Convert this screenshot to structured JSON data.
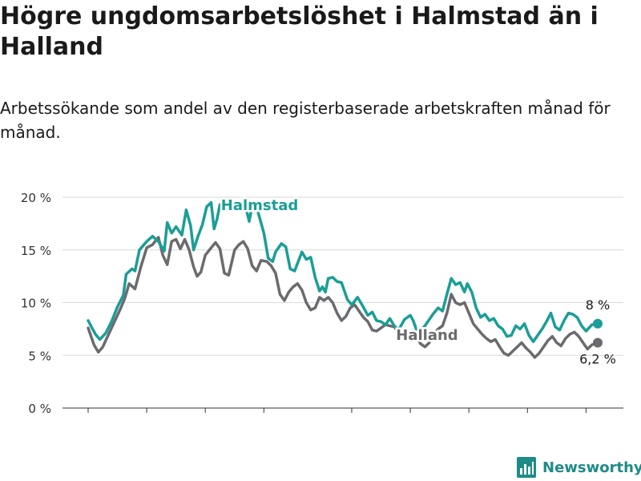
{
  "title": "Högre ungdomsarbetslöshet i Halmstad än i Halland",
  "subtitle": "Arbetssökande som andel av den registerbaserade arbetskraften månad för månad.",
  "brand": "Newsworthy",
  "colors": {
    "halmstad": "#1a9e96",
    "halland": "#6b6b6f",
    "grid": "#d9d9d9"
  },
  "chart_data": {
    "type": "line",
    "title": "Högre ungdomsarbetslöshet i Halmstad än i Halland",
    "xlabel": "",
    "ylabel": "",
    "ylim": [
      0,
      20
    ],
    "yticks": [
      0,
      5,
      10,
      15,
      20
    ],
    "ytick_labels": [
      "0 %",
      "5 %",
      "10 %",
      "15 %",
      "20 %"
    ],
    "xticks": [
      2008,
      2010,
      2012,
      2014,
      2017,
      2019,
      2021,
      2023,
      2025
    ],
    "grid": true,
    "series": [
      {
        "name": "Halmstad",
        "end_label": "8 %",
        "points": [
          [
            2008.0,
            8.3
          ],
          [
            2008.25,
            7.0
          ],
          [
            2008.4,
            6.5
          ],
          [
            2008.6,
            7.1
          ],
          [
            2008.8,
            8.2
          ],
          [
            2009.0,
            9.6
          ],
          [
            2009.2,
            10.7
          ],
          [
            2009.3,
            12.7
          ],
          [
            2009.5,
            13.2
          ],
          [
            2009.6,
            13.0
          ],
          [
            2009.75,
            15.0
          ],
          [
            2010.0,
            15.8
          ],
          [
            2010.2,
            16.3
          ],
          [
            2010.4,
            15.8
          ],
          [
            2010.6,
            14.9
          ],
          [
            2010.7,
            17.6
          ],
          [
            2010.85,
            16.6
          ],
          [
            2011.0,
            17.2
          ],
          [
            2011.2,
            16.4
          ],
          [
            2011.35,
            18.8
          ],
          [
            2011.5,
            17.3
          ],
          [
            2011.6,
            15.0
          ],
          [
            2011.75,
            16.3
          ],
          [
            2011.9,
            17.4
          ],
          [
            2012.05,
            19.1
          ],
          [
            2012.2,
            19.5
          ],
          [
            2012.3,
            17.0
          ],
          [
            2012.4,
            17.9
          ],
          [
            2012.5,
            19.3
          ],
          [
            2013.0,
            19.3
          ],
          [
            2013.35,
            19.4
          ],
          [
            2013.5,
            17.7
          ],
          [
            2013.62,
            19.5
          ],
          [
            2013.8,
            18.6
          ],
          [
            2014.0,
            16.6
          ],
          [
            2014.15,
            14.2
          ],
          [
            2014.3,
            13.9
          ],
          [
            2014.4,
            14.8
          ],
          [
            2014.6,
            15.6
          ],
          [
            2014.75,
            15.3
          ],
          [
            2014.9,
            13.2
          ],
          [
            2015.05,
            13.0
          ],
          [
            2015.3,
            14.8
          ],
          [
            2015.45,
            14.1
          ],
          [
            2015.6,
            14.3
          ],
          [
            2015.75,
            12.4
          ],
          [
            2015.9,
            11.1
          ],
          [
            2016.0,
            11.5
          ],
          [
            2016.1,
            11.0
          ],
          [
            2016.2,
            12.3
          ],
          [
            2016.35,
            12.4
          ],
          [
            2016.5,
            12.0
          ],
          [
            2016.65,
            11.9
          ],
          [
            2016.85,
            10.3
          ],
          [
            2017.0,
            9.8
          ],
          [
            2017.2,
            10.5
          ],
          [
            2017.35,
            9.8
          ],
          [
            2017.55,
            8.8
          ],
          [
            2017.7,
            9.1
          ],
          [
            2017.85,
            8.3
          ],
          [
            2018.0,
            8.2
          ],
          [
            2018.15,
            7.9
          ],
          [
            2018.3,
            8.5
          ],
          [
            2018.45,
            7.8
          ],
          [
            2018.6,
            7.4
          ],
          [
            2018.8,
            8.4
          ],
          [
            2019.0,
            8.8
          ],
          [
            2019.1,
            8.3
          ],
          [
            2019.2,
            7.5
          ],
          [
            2019.35,
            7.3
          ],
          [
            2019.5,
            7.8
          ],
          [
            2019.65,
            8.4
          ],
          [
            2019.8,
            9.0
          ],
          [
            2019.95,
            9.5
          ],
          [
            2020.1,
            9.2
          ],
          [
            2020.25,
            10.8
          ],
          [
            2020.4,
            12.3
          ],
          [
            2020.55,
            11.7
          ],
          [
            2020.7,
            11.9
          ],
          [
            2020.85,
            11.0
          ],
          [
            2020.95,
            11.8
          ],
          [
            2021.1,
            11.0
          ],
          [
            2021.25,
            9.5
          ],
          [
            2021.4,
            8.6
          ],
          [
            2021.55,
            8.9
          ],
          [
            2021.7,
            8.3
          ],
          [
            2021.85,
            8.5
          ],
          [
            2022.0,
            7.8
          ],
          [
            2022.15,
            7.5
          ],
          [
            2022.3,
            6.8
          ],
          [
            2022.45,
            6.9
          ],
          [
            2022.6,
            7.8
          ],
          [
            2022.75,
            7.5
          ],
          [
            2022.9,
            8.0
          ],
          [
            2023.05,
            6.9
          ],
          [
            2023.2,
            6.3
          ],
          [
            2023.35,
            6.9
          ],
          [
            2023.5,
            7.5
          ],
          [
            2023.65,
            8.2
          ],
          [
            2023.8,
            9.0
          ],
          [
            2023.95,
            7.7
          ],
          [
            2024.1,
            7.4
          ],
          [
            2024.25,
            8.3
          ],
          [
            2024.4,
            9.0
          ],
          [
            2024.55,
            8.9
          ],
          [
            2024.7,
            8.6
          ],
          [
            2024.85,
            7.8
          ],
          [
            2025.0,
            7.3
          ],
          [
            2025.2,
            7.9
          ],
          [
            2025.4,
            8.0
          ]
        ]
      },
      {
        "name": "Halland",
        "end_label": "6,2 %",
        "points": [
          [
            2008.0,
            7.6
          ],
          [
            2008.2,
            6.0
          ],
          [
            2008.35,
            5.3
          ],
          [
            2008.5,
            5.8
          ],
          [
            2008.7,
            7.0
          ],
          [
            2008.9,
            8.2
          ],
          [
            2009.1,
            9.4
          ],
          [
            2009.25,
            10.4
          ],
          [
            2009.4,
            11.8
          ],
          [
            2009.6,
            11.3
          ],
          [
            2009.8,
            13.4
          ],
          [
            2010.0,
            15.2
          ],
          [
            2010.2,
            15.5
          ],
          [
            2010.4,
            16.2
          ],
          [
            2010.55,
            14.5
          ],
          [
            2010.7,
            13.6
          ],
          [
            2010.85,
            15.8
          ],
          [
            2011.0,
            16.0
          ],
          [
            2011.15,
            15.1
          ],
          [
            2011.3,
            16.0
          ],
          [
            2011.45,
            15.0
          ],
          [
            2011.6,
            13.4
          ],
          [
            2011.72,
            12.5
          ],
          [
            2011.85,
            12.9
          ],
          [
            2012.0,
            14.5
          ],
          [
            2012.2,
            15.2
          ],
          [
            2012.35,
            15.7
          ],
          [
            2012.5,
            15.1
          ],
          [
            2012.65,
            12.8
          ],
          [
            2012.8,
            12.6
          ],
          [
            2013.0,
            15.0
          ],
          [
            2013.15,
            15.5
          ],
          [
            2013.3,
            15.8
          ],
          [
            2013.45,
            15.1
          ],
          [
            2013.6,
            13.5
          ],
          [
            2013.75,
            13.0
          ],
          [
            2013.9,
            14.0
          ],
          [
            2014.1,
            13.9
          ],
          [
            2014.25,
            13.5
          ],
          [
            2014.4,
            12.8
          ],
          [
            2014.55,
            10.8
          ],
          [
            2014.7,
            10.2
          ],
          [
            2014.85,
            11.0
          ],
          [
            2015.0,
            11.5
          ],
          [
            2015.15,
            11.8
          ],
          [
            2015.3,
            11.2
          ],
          [
            2015.45,
            10.0
          ],
          [
            2015.6,
            9.3
          ],
          [
            2015.75,
            9.5
          ],
          [
            2015.9,
            10.5
          ],
          [
            2016.05,
            10.2
          ],
          [
            2016.2,
            10.5
          ],
          [
            2016.35,
            10.0
          ],
          [
            2016.5,
            9.0
          ],
          [
            2016.65,
            8.3
          ],
          [
            2016.8,
            8.7
          ],
          [
            2016.95,
            9.5
          ],
          [
            2017.1,
            9.8
          ],
          [
            2017.25,
            9.2
          ],
          [
            2017.4,
            8.6
          ],
          [
            2017.55,
            8.2
          ],
          [
            2017.7,
            7.4
          ],
          [
            2017.85,
            7.3
          ],
          [
            2018.0,
            7.6
          ],
          [
            2018.15,
            7.9
          ],
          [
            2018.3,
            7.8
          ],
          [
            2018.45,
            7.7
          ],
          [
            2018.6,
            7.2
          ],
          [
            2018.75,
            6.8
          ],
          [
            2018.9,
            6.6
          ],
          [
            2019.05,
            6.4
          ],
          [
            2019.2,
            6.8
          ],
          [
            2019.35,
            6.1
          ],
          [
            2019.5,
            5.8
          ],
          [
            2019.65,
            6.2
          ],
          [
            2019.8,
            7.0
          ],
          [
            2019.95,
            7.5
          ],
          [
            2020.1,
            7.8
          ],
          [
            2020.25,
            9.0
          ],
          [
            2020.4,
            10.8
          ],
          [
            2020.55,
            10.0
          ],
          [
            2020.7,
            9.8
          ],
          [
            2020.85,
            10.0
          ],
          [
            2021.0,
            9.0
          ],
          [
            2021.15,
            8.0
          ],
          [
            2021.3,
            7.5
          ],
          [
            2021.45,
            7.0
          ],
          [
            2021.6,
            6.6
          ],
          [
            2021.75,
            6.3
          ],
          [
            2021.9,
            6.5
          ],
          [
            2022.05,
            5.8
          ],
          [
            2022.2,
            5.2
          ],
          [
            2022.35,
            5.0
          ],
          [
            2022.5,
            5.4
          ],
          [
            2022.65,
            5.8
          ],
          [
            2022.8,
            6.2
          ],
          [
            2022.95,
            5.7
          ],
          [
            2023.1,
            5.3
          ],
          [
            2023.25,
            4.8
          ],
          [
            2023.4,
            5.2
          ],
          [
            2023.55,
            5.8
          ],
          [
            2023.7,
            6.4
          ],
          [
            2023.85,
            6.8
          ],
          [
            2024.0,
            6.2
          ],
          [
            2024.15,
            5.9
          ],
          [
            2024.3,
            6.6
          ],
          [
            2024.45,
            7.0
          ],
          [
            2024.6,
            7.2
          ],
          [
            2024.75,
            6.8
          ],
          [
            2024.9,
            6.2
          ],
          [
            2025.05,
            5.6
          ],
          [
            2025.2,
            6.0
          ],
          [
            2025.4,
            6.2
          ]
        ]
      }
    ]
  }
}
